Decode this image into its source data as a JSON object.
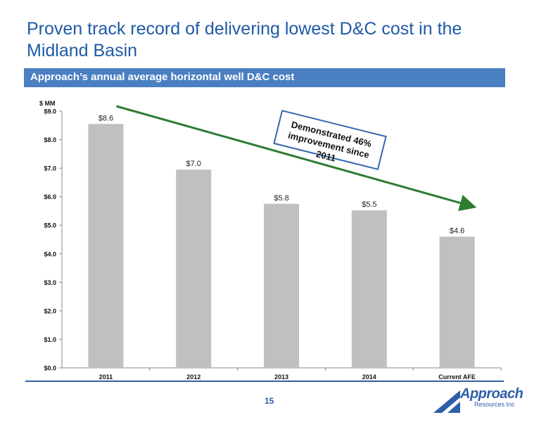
{
  "slide": {
    "title": "Proven track record of delivering lowest D&C cost in the Midland Basin",
    "banner": "Approach’s annual average horizontal well D&C cost",
    "callout": "Demonstrated 46% improvement since 2011",
    "page_number": "15",
    "logo": {
      "name": "Approach",
      "sub": "Resources Inc",
      "color": "#2d5fa8"
    }
  },
  "colors": {
    "title": "#1f5aa6",
    "banner": "#4a7fc1",
    "bar": "#c0c0c0",
    "arrow": "#2e7d32"
  },
  "chart_data": {
    "type": "bar",
    "ylabel": "$ MM",
    "categories": [
      "2011",
      "2012",
      "2013",
      "2014",
      "Current AFE"
    ],
    "values": [
      8.55,
      6.95,
      5.75,
      5.52,
      4.6
    ],
    "data_labels": [
      "$8.6",
      "$7.0",
      "$5.8",
      "$5.5",
      "$4.6"
    ],
    "ylim": [
      0,
      9
    ],
    "yticks": [
      0,
      1,
      2,
      3,
      4,
      5,
      6,
      7,
      8,
      9
    ],
    "ytick_labels": [
      "$0.0",
      "$1.0",
      "$2.0",
      "$3.0",
      "$4.0",
      "$5.0",
      "$6.0",
      "$7.0",
      "$8.0",
      "$9.0"
    ],
    "grid": false,
    "legend": "none",
    "trend_arrow": {
      "from": "2011",
      "to": "Current AFE"
    }
  }
}
